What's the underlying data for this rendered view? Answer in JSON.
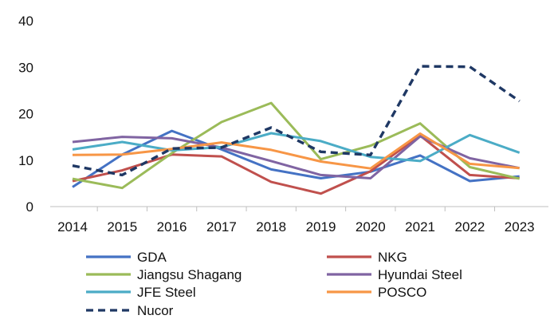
{
  "chart_data": {
    "type": "line",
    "title": "",
    "xlabel": "",
    "ylabel": "",
    "categories": [
      "2014",
      "2015",
      "2016",
      "2017",
      "2018",
      "2019",
      "2020",
      "2021",
      "2022",
      "2023"
    ],
    "ylim": [
      0,
      40
    ],
    "yticks": [
      "0",
      "10",
      "20",
      "30",
      "40"
    ],
    "grid": false,
    "legend_position": "bottom",
    "series": [
      {
        "name": "GDA",
        "color": "#4472c4",
        "dash": "solid",
        "values": [
          4.2,
          11.2,
          16.3,
          12.3,
          8.0,
          6.1,
          7.5,
          11.0,
          5.5,
          6.5
        ]
      },
      {
        "name": "NKG",
        "color": "#c0504d",
        "dash": "solid",
        "values": [
          5.5,
          7.8,
          11.2,
          10.8,
          5.3,
          2.8,
          7.6,
          15.3,
          6.8,
          6.1
        ]
      },
      {
        "name": "Jiangsu Shagang",
        "color": "#9bbb59",
        "dash": "solid",
        "values": [
          6.0,
          4.0,
          11.5,
          18.2,
          22.3,
          10.2,
          13.1,
          17.9,
          8.5,
          6.0
        ]
      },
      {
        "name": "Hyundai Steel",
        "color": "#8064a2",
        "dash": "solid",
        "values": [
          13.9,
          15.0,
          14.7,
          12.7,
          9.8,
          6.8,
          6.1,
          15.1,
          10.4,
          8.3
        ]
      },
      {
        "name": "JFE Steel",
        "color": "#4bacc6",
        "dash": "solid",
        "values": [
          12.3,
          13.9,
          12.1,
          12.8,
          15.8,
          14.1,
          10.7,
          9.8,
          15.4,
          11.6
        ]
      },
      {
        "name": "POSCO",
        "color": "#f79646",
        "dash": "solid",
        "values": [
          11.1,
          11.2,
          12.4,
          13.8,
          12.2,
          9.7,
          8.2,
          15.7,
          9.2,
          8.3
        ]
      },
      {
        "name": "Nucor",
        "color": "#1f3864",
        "dash": "dashed",
        "values": [
          8.8,
          6.8,
          12.5,
          12.7,
          17.0,
          11.8,
          11.1,
          30.2,
          30.1,
          22.7
        ]
      }
    ]
  }
}
